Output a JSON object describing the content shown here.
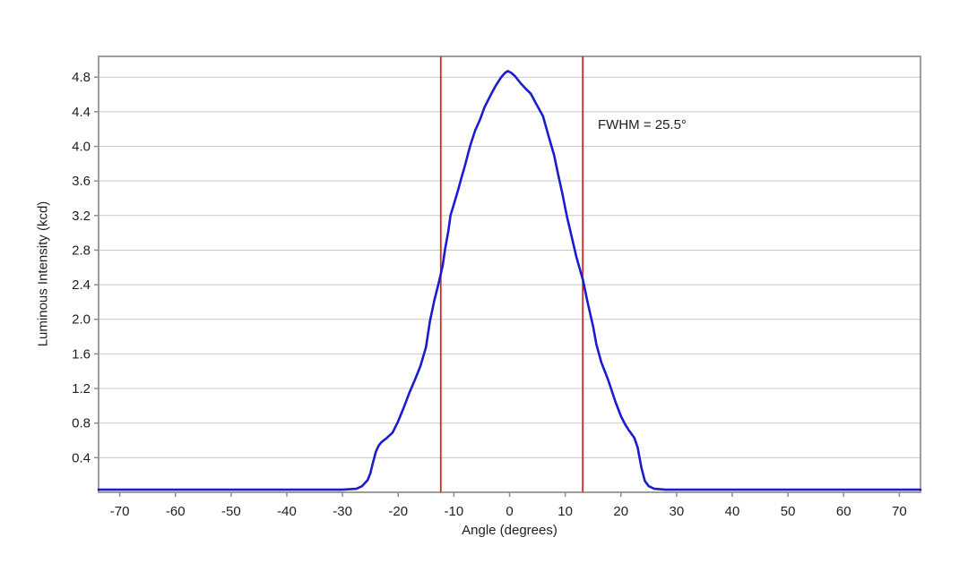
{
  "chart_data": {
    "type": "line",
    "title": "",
    "xlabel": "Angle (degrees)",
    "ylabel": "Luminous Intensity (kcd)",
    "xlim": [
      -73.8,
      73.8
    ],
    "ylim": [
      0,
      5.04
    ],
    "x_ticks": [
      -70,
      -60,
      -50,
      -40,
      -30,
      -20,
      -10,
      0,
      10,
      20,
      30,
      40,
      50,
      60,
      70
    ],
    "y_ticks": [
      0.4,
      0.8,
      1.2,
      1.6,
      2.0,
      2.4,
      2.8,
      3.2,
      3.6,
      4.0,
      4.4,
      4.8
    ],
    "grid": "horizontal",
    "legend": "none",
    "annotation": {
      "text": "FWHM = 25.5°",
      "x_deg": 16,
      "y_kcd": 4.2
    },
    "fwhm_lines": {
      "x_values": [
        -12.35,
        13.15
      ],
      "fwhm_deg": 25.5
    },
    "series": [
      {
        "name": "luminous-intensity-vs-angle",
        "peak_kcd": 4.87,
        "points": [
          [
            -73.8,
            0.03
          ],
          [
            -70,
            0.03
          ],
          [
            -65,
            0.03
          ],
          [
            -60,
            0.03
          ],
          [
            -55,
            0.03
          ],
          [
            -50,
            0.03
          ],
          [
            -45,
            0.03
          ],
          [
            -40,
            0.03
          ],
          [
            -35,
            0.03
          ],
          [
            -30,
            0.03
          ],
          [
            -27.5,
            0.04
          ],
          [
            -26.5,
            0.07
          ],
          [
            -25.5,
            0.14
          ],
          [
            -25,
            0.22
          ],
          [
            -24.5,
            0.35
          ],
          [
            -24,
            0.47
          ],
          [
            -23.5,
            0.54
          ],
          [
            -23,
            0.58
          ],
          [
            -22,
            0.63
          ],
          [
            -21,
            0.69
          ],
          [
            -20,
            0.82
          ],
          [
            -19,
            0.98
          ],
          [
            -18,
            1.15
          ],
          [
            -17,
            1.3
          ],
          [
            -16,
            1.46
          ],
          [
            -15,
            1.68
          ],
          [
            -14.3,
            1.98
          ],
          [
            -13.5,
            2.22
          ],
          [
            -12.8,
            2.4
          ],
          [
            -12,
            2.62
          ],
          [
            -11.6,
            2.8
          ],
          [
            -11,
            3.02
          ],
          [
            -10.6,
            3.2
          ],
          [
            -10,
            3.33
          ],
          [
            -9.3,
            3.48
          ],
          [
            -8.7,
            3.62
          ],
          [
            -8,
            3.78
          ],
          [
            -7.1,
            4.0
          ],
          [
            -6.2,
            4.18
          ],
          [
            -5.3,
            4.31
          ],
          [
            -4.5,
            4.45
          ],
          [
            -3.5,
            4.58
          ],
          [
            -2.5,
            4.7
          ],
          [
            -1.5,
            4.8
          ],
          [
            -0.8,
            4.85
          ],
          [
            -0.3,
            4.87
          ],
          [
            0.3,
            4.85
          ],
          [
            1,
            4.81
          ],
          [
            2,
            4.73
          ],
          [
            3,
            4.66
          ],
          [
            3.8,
            4.61
          ],
          [
            4.8,
            4.49
          ],
          [
            6,
            4.35
          ],
          [
            7,
            4.12
          ],
          [
            8,
            3.9
          ],
          [
            8.7,
            3.68
          ],
          [
            9.5,
            3.45
          ],
          [
            10.3,
            3.19
          ],
          [
            11,
            3.0
          ],
          [
            12,
            2.72
          ],
          [
            13.2,
            2.45
          ],
          [
            14,
            2.2
          ],
          [
            15,
            1.92
          ],
          [
            15.6,
            1.71
          ],
          [
            16.5,
            1.5
          ],
          [
            17.7,
            1.3
          ],
          [
            19,
            1.05
          ],
          [
            20,
            0.88
          ],
          [
            20.8,
            0.78
          ],
          [
            21.5,
            0.71
          ],
          [
            22.4,
            0.63
          ],
          [
            23,
            0.52
          ],
          [
            23.7,
            0.28
          ],
          [
            24.3,
            0.13
          ],
          [
            25,
            0.07
          ],
          [
            26,
            0.04
          ],
          [
            28,
            0.03
          ],
          [
            30,
            0.03
          ],
          [
            35,
            0.03
          ],
          [
            40,
            0.03
          ],
          [
            45,
            0.03
          ],
          [
            50,
            0.03
          ],
          [
            55,
            0.03
          ],
          [
            60,
            0.03
          ],
          [
            65,
            0.03
          ],
          [
            70,
            0.03
          ],
          [
            73.8,
            0.03
          ]
        ]
      }
    ],
    "colors": {
      "curve": "#1b1bcf",
      "fwhm_line": "#cc2a22",
      "grid": "#c8c8c8",
      "border": "#9e9e9e",
      "tick": "#8c8c8c",
      "text": "#1f1f1f",
      "background": "#ffffff"
    }
  }
}
